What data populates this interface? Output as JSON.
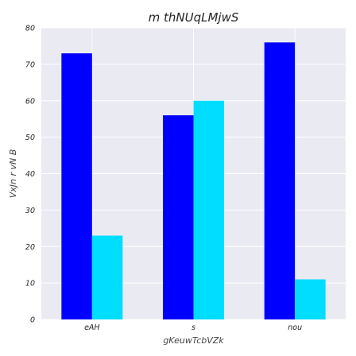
{
  "chart_data": {
    "type": "bar",
    "title": "m thNUqLMjwS",
    "xlabel": "gKeuwTcbVZk",
    "ylabel": "VxJn r vN B",
    "categories": [
      "eAH",
      "s",
      "nou"
    ],
    "series": [
      {
        "values": [
          73,
          56,
          76
        ],
        "color": "#0000ff"
      },
      {
        "values": [
          23,
          60,
          11
        ],
        "color": "#00ddff"
      }
    ],
    "ylim": [
      0,
      80
    ],
    "yticks": [
      0,
      10,
      20,
      30,
      40,
      50,
      60,
      70,
      80
    ],
    "grid": true,
    "background": "#eaeaf2"
  }
}
